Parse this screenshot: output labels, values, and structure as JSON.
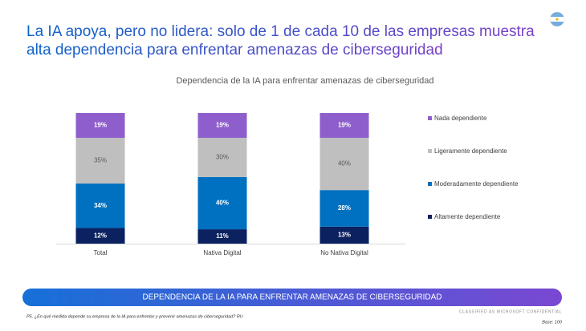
{
  "slide": {
    "headline": [
      "La IA apoya, pero no lidera: solo de 1 de cada 10 de las empresas muestra",
      "alta dependencia para enfrentar amenazas de ciberseguridad"
    ],
    "banner": "DEPENDENCIA DE LA IA PARA ENFRENTAR AMENAZAS DE CIBERSEGURIDAD",
    "footnote": "P5. ¿En qué medida depende su empresa de la IA para enfrentar y prevenir amenazas de ciberseguridad? RU",
    "classification": "CLASSIFIED AS MICROSOFT CONFIDENTIAL",
    "base": "Base: 100"
  },
  "chart_data": {
    "type": "bar",
    "stacked": true,
    "title": "Dependencia de la IA para enfrentar amenazas de ciberseguridad",
    "categories": [
      "Total",
      "Nativa Digital",
      "No Nativa Digital"
    ],
    "series": [
      {
        "name": "Altamente dependiente",
        "color": "#0b2160",
        "values": [
          12,
          11,
          13
        ],
        "value_labels": [
          "12%",
          "11%",
          "13%"
        ]
      },
      {
        "name": "Moderadamente dependiente",
        "color": "#0070c0",
        "values": [
          34,
          40,
          28
        ],
        "value_labels": [
          "34%",
          "40%",
          "28%"
        ]
      },
      {
        "name": "Ligeramente dependiente",
        "color": "#bfbfbf",
        "values": [
          35,
          30,
          40
        ],
        "value_labels": [
          "35%",
          "30%",
          "40%"
        ]
      },
      {
        "name": "Nada dependiente",
        "color": "#8e5fcc",
        "values": [
          19,
          19,
          19
        ],
        "value_labels": [
          "19%",
          "19%",
          "19%"
        ]
      }
    ],
    "legend": "right"
  }
}
